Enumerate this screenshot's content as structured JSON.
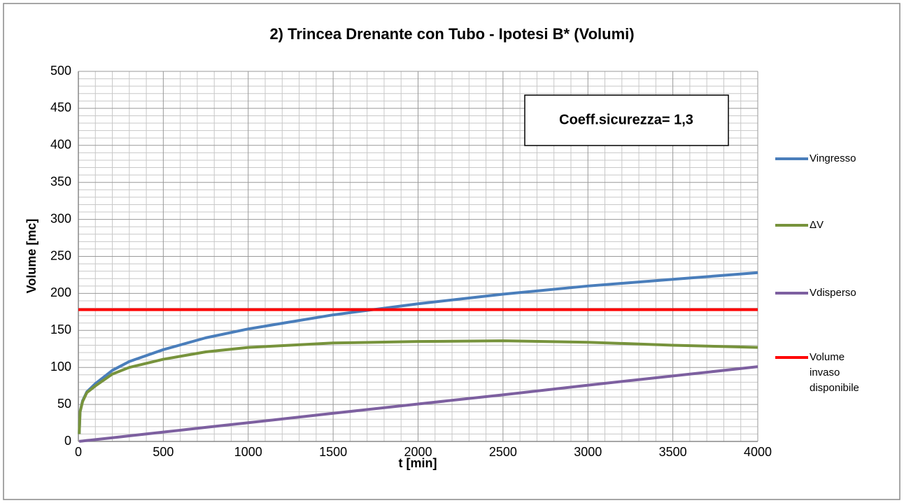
{
  "chart_data": {
    "type": "line",
    "title": "2) Trincea Drenante con Tubo - Ipotesi B* (Volumi)",
    "xlabel": "t [min]",
    "ylabel": "Volume [mc]",
    "annotation": "Coeff.sicurezza= 1,3",
    "xlim": [
      0,
      4000
    ],
    "ylim": [
      0,
      500
    ],
    "xticks": [
      0,
      500,
      1000,
      1500,
      2000,
      2500,
      3000,
      3500,
      4000
    ],
    "yticks": [
      0,
      50,
      100,
      150,
      200,
      250,
      300,
      350,
      400,
      450,
      500
    ],
    "grid": true,
    "minor_grid": true,
    "legend": "right",
    "series": [
      {
        "name": "Vingresso",
        "color": "#4a7ebb",
        "x": [
          5,
          10,
          25,
          50,
          100,
          200,
          300,
          500,
          750,
          1000,
          1500,
          2000,
          2500,
          3000,
          3500,
          4000
        ],
        "values": [
          10,
          40,
          55,
          67,
          78,
          96,
          108,
          124,
          140,
          152,
          171,
          186,
          199,
          210,
          219,
          228
        ]
      },
      {
        "name": "ΔV",
        "color": "#77933c",
        "x": [
          5,
          10,
          25,
          50,
          100,
          200,
          300,
          500,
          750,
          1000,
          1500,
          2000,
          2500,
          3000,
          3500,
          4000
        ],
        "values": [
          10,
          40,
          54,
          66,
          75,
          91,
          100,
          111,
          121,
          127,
          133,
          135,
          136,
          134,
          130,
          127
        ]
      },
      {
        "name": "Vdisperso",
        "color": "#7d60a0",
        "x": [
          5,
          10,
          25,
          50,
          100,
          200,
          300,
          500,
          750,
          1000,
          1500,
          2000,
          2500,
          3000,
          3500,
          4000
        ],
        "values": [
          0.1,
          0.25,
          0.6,
          1.3,
          2.5,
          5,
          7.6,
          12.6,
          19,
          25.3,
          38,
          50.6,
          63,
          76,
          88.5,
          101
        ]
      },
      {
        "name": "Volume invaso disponibile",
        "color": "#ff0000",
        "x": [
          0,
          4000
        ],
        "values": [
          178,
          178
        ]
      }
    ]
  }
}
